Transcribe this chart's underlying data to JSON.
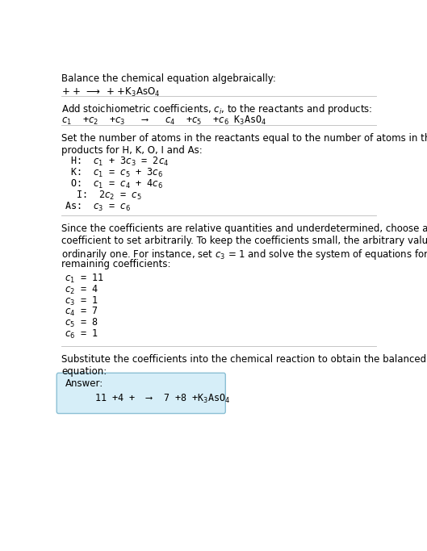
{
  "bg_color": "#ffffff",
  "text_color": "#000000",
  "title": "Balance the chemical equation algebraically:",
  "line1": "+ +  ⟶  + +K$_3$AsO$_4$",
  "section1_header": "Add stoichiometric coefficients, $c_i$, to the reactants and products:",
  "section1_eq": "$c_1$  +$c_2$  +$c_3$   ⟶   $c_4$  +$c_5$  +$c_6$ K$_3$AsO$_4$",
  "section2_header_1": "Set the number of atoms in the reactants equal to the number of atoms in the",
  "section2_header_2": "products for H, K, O, I and As:",
  "atom_eqs": [
    " H:  $c_1$ + 3$c_3$ = 2$c_4$",
    " K:  $c_1$ = $c_5$ + 3$c_6$",
    " O:  $c_1$ = $c_4$ + 4$c_6$",
    "  I:  2$c_2$ = $c_5$",
    "As:  $c_3$ = $c_6$"
  ],
  "section3_line1": "Since the coefficients are relative quantities and underdetermined, choose a",
  "section3_line2": "coefficient to set arbitrarily. To keep the coefficients small, the arbitrary value is",
  "section3_line3": "ordinarily one. For instance, set $c_3$ = 1 and solve the system of equations for the",
  "section3_line4": "remaining coefficients:",
  "coeff_lines": [
    "$c_1$ = 11",
    "$c_2$ = 4",
    "$c_3$ = 1",
    "$c_4$ = 7",
    "$c_5$ = 8",
    "$c_6$ = 1"
  ],
  "section4_line1": "Substitute the coefficients into the chemical reaction to obtain the balanced",
  "section4_line2": "equation:",
  "answer_label": "Answer:",
  "answer_eq": "    11 +4 +  ⟶  7 +8 +K$_3$AsO$_4$",
  "answer_box_color": "#d6eef8",
  "answer_box_border": "#8bbfd4",
  "hr_color": "#bbbbbb",
  "fs": 8.5,
  "fs_mono": 8.5,
  "lh": 0.0285,
  "lm": 0.025
}
